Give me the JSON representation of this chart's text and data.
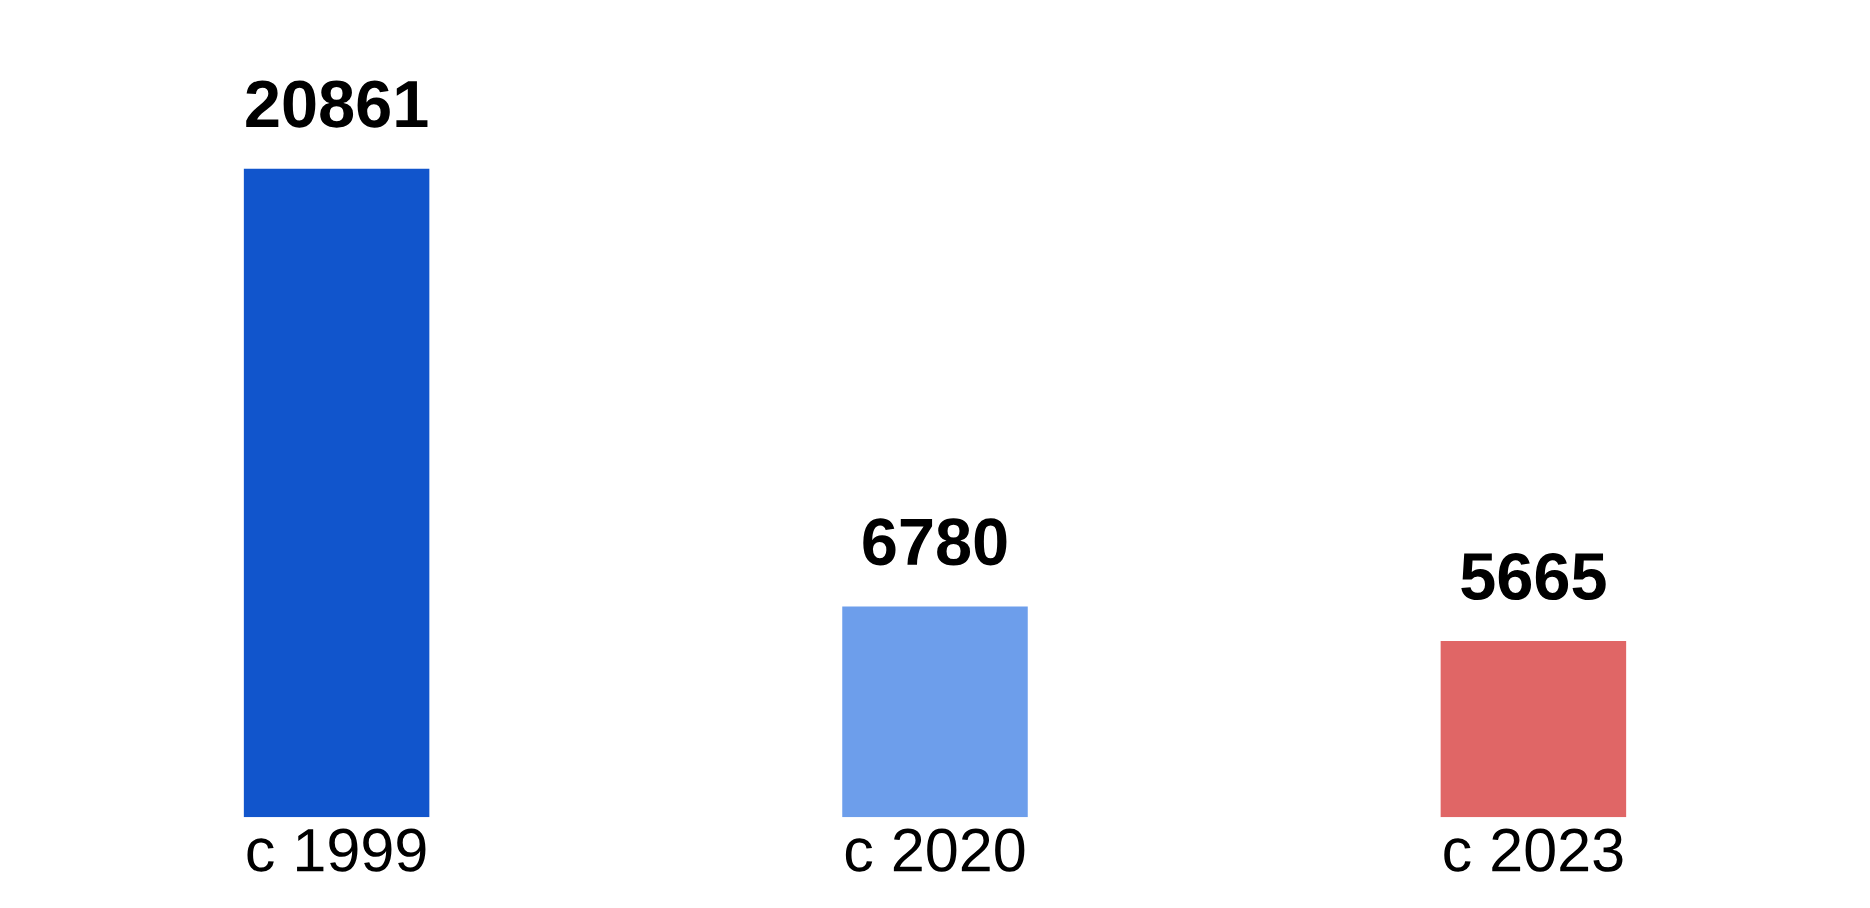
{
  "chart_data": {
    "type": "bar",
    "categories": [
      "с 1999",
      "с 2020",
      "с 2023"
    ],
    "values": [
      20861,
      6780,
      5665
    ],
    "colors": [
      "#1155cc",
      "#6d9eeb",
      "#e06666"
    ],
    "data_labels": true,
    "grid": false,
    "legend": false
  }
}
